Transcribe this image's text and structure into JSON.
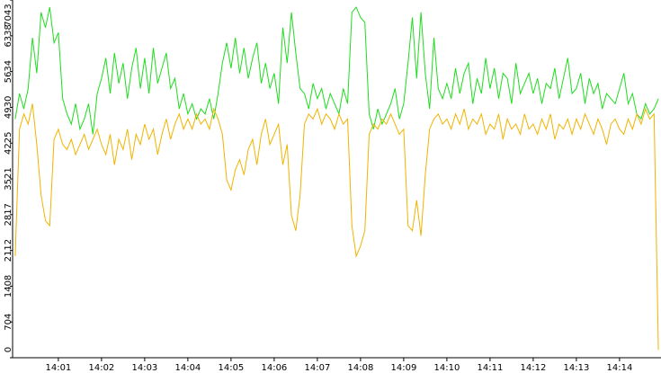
{
  "chart_data": {
    "type": "line",
    "x": [
      0.0,
      0.1,
      0.2,
      0.3,
      0.4,
      0.5,
      0.6,
      0.7,
      0.8,
      0.9,
      1.0,
      1.1,
      1.2,
      1.3,
      1.4,
      1.5,
      1.6,
      1.7,
      1.8,
      1.9,
      2.0,
      2.1,
      2.2,
      2.3,
      2.4,
      2.5,
      2.6,
      2.7,
      2.8,
      2.9,
      3.0,
      3.1,
      3.2,
      3.3,
      3.4,
      3.5,
      3.6,
      3.7,
      3.8,
      3.9,
      4.0,
      4.1,
      4.2,
      4.3,
      4.4,
      4.5,
      4.6,
      4.7,
      4.8,
      4.9,
      5.0,
      5.1,
      5.2,
      5.3,
      5.4,
      5.5,
      5.6,
      5.7,
      5.8,
      5.9,
      6.0,
      6.1,
      6.2,
      6.3,
      6.4,
      6.5,
      6.6,
      6.7,
      6.8,
      6.9,
      7.0,
      7.1,
      7.2,
      7.3,
      7.4,
      7.5,
      7.6,
      7.7,
      7.8,
      7.9,
      8.0,
      8.1,
      8.2,
      8.3,
      8.4,
      8.5,
      8.6,
      8.7,
      8.8,
      8.9,
      9.0,
      9.1,
      9.2,
      9.3,
      9.4,
      9.5,
      9.6,
      9.7,
      9.8,
      9.9,
      10.0,
      10.1,
      10.2,
      10.3,
      10.4,
      10.5,
      10.6,
      10.7,
      10.8,
      10.9,
      11.0,
      11.1,
      11.2,
      11.3,
      11.4,
      11.5,
      11.6,
      11.7,
      11.8,
      11.9,
      12.0,
      12.1,
      12.2,
      12.3,
      12.4,
      12.5,
      12.6,
      12.7,
      12.8,
      12.9,
      13.0,
      13.1,
      13.2,
      13.3,
      13.4,
      13.5,
      13.6,
      13.7,
      13.8,
      13.9,
      14.0,
      14.1,
      14.2,
      14.3,
      14.4,
      14.5,
      14.6,
      14.7,
      14.8,
      14.9
    ],
    "series": [
      {
        "color": "#1fdc1f",
        "values": [
          4700,
          5200,
          4900,
          5300,
          6300,
          5600,
          6800,
          6500,
          6900,
          6200,
          6400,
          5100,
          4800,
          4600,
          5000,
          4500,
          4700,
          5000,
          4400,
          5200,
          5500,
          5900,
          5200,
          6000,
          5400,
          5800,
          5100,
          5700,
          6100,
          5300,
          5900,
          5200,
          6100,
          5400,
          5700,
          6000,
          5300,
          5500,
          4900,
          5200,
          4800,
          5000,
          4700,
          4900,
          4800,
          5100,
          4700,
          5200,
          5800,
          6200,
          5700,
          6300,
          5600,
          6100,
          5500,
          5900,
          6200,
          5400,
          5800,
          5300,
          5600,
          5000,
          6500,
          5800,
          6800,
          6000,
          5300,
          5200,
          4900,
          5400,
          5100,
          5300,
          4900,
          5200,
          5000,
          4800,
          5300,
          5000,
          6800,
          6900,
          6700,
          6600,
          4800,
          4500,
          4900,
          4600,
          4800,
          5000,
          5300,
          4700,
          5000,
          5800,
          6700,
          5500,
          6800,
          5600,
          4900,
          6300,
          5300,
          5100,
          5400,
          5100,
          5700,
          5200,
          5600,
          5800,
          5000,
          5500,
          5200,
          5900,
          5300,
          5700,
          5100,
          5600,
          5500,
          5000,
          5800,
          5200,
          5400,
          5600,
          5200,
          5500,
          5000,
          5400,
          5300,
          5700,
          5100,
          5500,
          5900,
          5200,
          5300,
          5600,
          5000,
          5500,
          5200,
          5400,
          4900,
          5200,
          5100,
          5000,
          5300,
          5600,
          5000,
          5200,
          4800,
          4700,
          5000,
          4800,
          4900,
          5100
        ]
      },
      {
        "color": "#f0b400",
        "values": [
          2000,
          4500,
          4800,
          4600,
          5000,
          4200,
          3200,
          2700,
          2600,
          4300,
          4500,
          4200,
          4100,
          4300,
          4000,
          4200,
          4400,
          4100,
          4300,
          4500,
          4200,
          4000,
          4400,
          3800,
          4300,
          4100,
          4500,
          3900,
          4400,
          4200,
          4600,
          4300,
          4500,
          4000,
          4400,
          4700,
          4300,
          4600,
          4800,
          4500,
          4700,
          4500,
          4800,
          4600,
          4700,
          4500,
          4900,
          4700,
          4400,
          3500,
          3300,
          3700,
          3900,
          3600,
          4100,
          4300,
          3800,
          4400,
          4700,
          4200,
          4400,
          4600,
          3800,
          4200,
          2800,
          2500,
          3200,
          4600,
          4800,
          4700,
          4900,
          4600,
          4800,
          4700,
          4500,
          4800,
          4600,
          4700,
          2600,
          2000,
          2200,
          2500,
          4400,
          4600,
          4500,
          4700,
          4600,
          4800,
          4600,
          4400,
          4500,
          2600,
          2500,
          3100,
          2400,
          3600,
          4500,
          4700,
          4800,
          4600,
          4700,
          4500,
          4800,
          4600,
          4900,
          4500,
          4700,
          4600,
          4800,
          4400,
          4600,
          4500,
          4800,
          4300,
          4700,
          4500,
          4600,
          4400,
          4800,
          4500,
          4600,
          4400,
          4700,
          4500,
          4800,
          4300,
          4600,
          4500,
          4700,
          4400,
          4700,
          4500,
          4800,
          4600,
          4400,
          4700,
          4500,
          4200,
          4600,
          4700,
          4500,
          4400,
          4700,
          4500,
          4800,
          4600,
          4900,
          4700,
          4800,
          150
        ]
      }
    ],
    "xlim": [
      -0.06,
      14.96
    ],
    "xticks": [
      {
        "value": 1,
        "label": "14:01"
      },
      {
        "value": 2,
        "label": "14:02"
      },
      {
        "value": 3,
        "label": "14:03"
      },
      {
        "value": 4,
        "label": "14:04"
      },
      {
        "value": 5,
        "label": "14:05"
      },
      {
        "value": 6,
        "label": "14:06"
      },
      {
        "value": 7,
        "label": "14:07"
      },
      {
        "value": 8,
        "label": "14:08"
      },
      {
        "value": 9,
        "label": "14:09"
      },
      {
        "value": 10,
        "label": "14:10"
      },
      {
        "value": 11,
        "label": "14:11"
      },
      {
        "value": 12,
        "label": "14:12"
      },
      {
        "value": 13,
        "label": "14:13"
      },
      {
        "value": 14,
        "label": "14:14"
      }
    ],
    "ylim": [
      0,
      7043
    ],
    "yticks": [
      0,
      704,
      1408,
      2112,
      2817,
      3521,
      4225,
      4930,
      5634,
      6338,
      7043
    ]
  }
}
